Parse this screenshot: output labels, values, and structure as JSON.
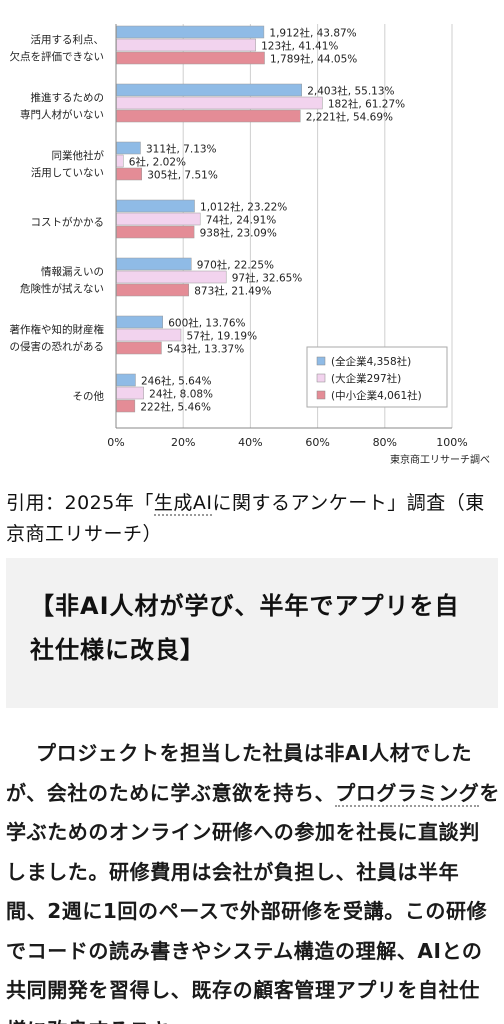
{
  "chart_data": {
    "type": "bar",
    "orientation": "horizontal",
    "categories": [
      [
        "活用する利点、",
        "欠点を評価できない"
      ],
      [
        "推進するための",
        "専門人材がいない"
      ],
      [
        "同業他社が",
        "活用していない"
      ],
      [
        "コストがかかる"
      ],
      [
        "情報漏えいの",
        "危険性が拭えない"
      ],
      [
        "著作権や知的財産権",
        "の侵害の恐れがある"
      ],
      [
        "その他"
      ]
    ],
    "series": [
      {
        "name": "(全企業4,358社)",
        "color": "#8fbbe6",
        "values": [
          43.87,
          55.13,
          7.13,
          23.22,
          22.25,
          13.76,
          5.64
        ],
        "labels": [
          "1,912社, 43.87%",
          "2,403社, 55.13%",
          "311社, 7.13%",
          "1,012社, 23.22%",
          "970社, 22.25%",
          "600社, 13.76%",
          "246社, 5.64%"
        ]
      },
      {
        "name": "(大企業297社)",
        "color": "#f2d3ee",
        "values": [
          41.41,
          61.27,
          2.02,
          24.91,
          32.65,
          19.19,
          8.08
        ],
        "labels": [
          "123社, 41.41%",
          "182社, 61.27%",
          "6社, 2.02%",
          "74社, 24.91%",
          "97社, 32.65%",
          "57社, 19.19%",
          "24社, 8.08%"
        ]
      },
      {
        "name": "(中小企業4,061社)",
        "color": "#e48c96",
        "values": [
          44.05,
          54.69,
          7.51,
          23.09,
          21.49,
          13.37,
          5.46
        ],
        "labels": [
          "1,789社, 44.05%",
          "2,221社, 54.69%",
          "305社, 7.51%",
          "938社, 23.09%",
          "873社, 21.49%",
          "543社, 13.37%",
          "222社, 5.46%"
        ]
      }
    ],
    "xlim": [
      0,
      100
    ],
    "xticks": [
      "0%",
      "20%",
      "40%",
      "60%",
      "80%",
      "100%"
    ],
    "grid": true,
    "legend_position": "bottom-right",
    "source_note": "東京商工リサーチ調べ"
  },
  "caption": {
    "prefix": "引用：2025年「",
    "link": "生成AI",
    "suffix": "に関するアンケート」調査（東京商工リサーチ）"
  },
  "heading": "【非AI人材が学び、半年でアプリを自社仕様に改良】",
  "body": {
    "part1": "プロジェクトを担当した社員は非AI人材でしたが、会社のために学ぶ意欲を持ち、",
    "link": "プログラミング",
    "part2": "を学ぶためのオンライン研修への参加を社長に直談判しました。研修費用は会社が負担し、社員は半年間、2週に1回のペースで外部研修を受講。この研修でコードの読み書きやシステム構造の理解、AIとの共同開発を習得し、既存の顧客管理アプリを自社仕様に改良するスキ"
  }
}
